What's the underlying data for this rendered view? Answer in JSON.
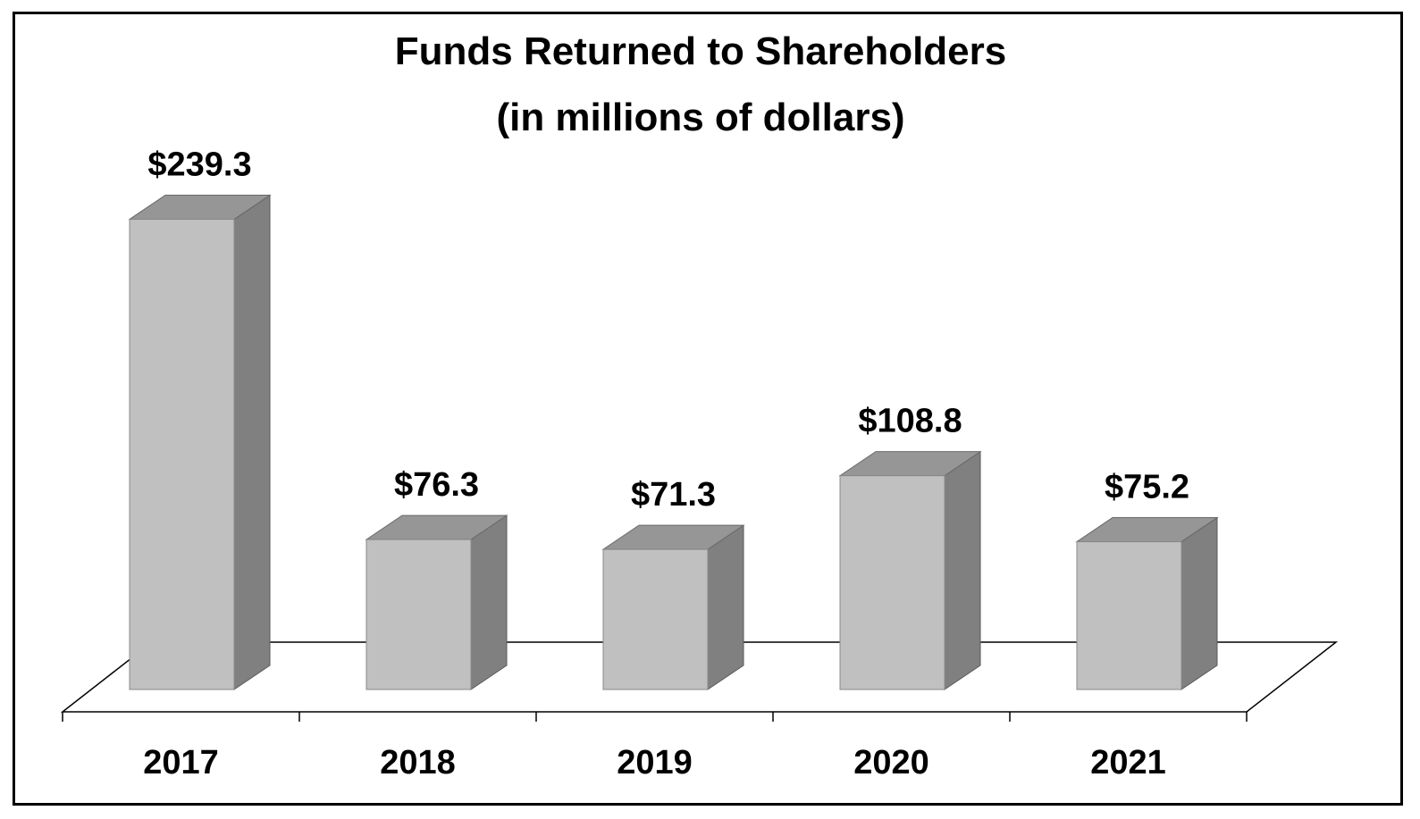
{
  "chart_data": {
    "type": "bar",
    "title": "Funds Returned to Shareholders",
    "subtitle": "(in millions of dollars)",
    "xlabel": "",
    "ylabel": "",
    "categories": [
      "2017",
      "2018",
      "2019",
      "2020",
      "2021"
    ],
    "values": [
      239.3,
      76.3,
      71.3,
      108.8,
      75.2
    ],
    "value_labels": [
      "$239.3",
      "$76.3",
      "$71.3",
      "$108.8",
      "$75.2"
    ],
    "ylim": [
      0,
      250
    ],
    "grid": false,
    "legend": "none",
    "style": "3d-column",
    "colors": {
      "front": "#c0c0c0",
      "side": "#808080",
      "top": "#969696",
      "axis": "#000000"
    }
  }
}
